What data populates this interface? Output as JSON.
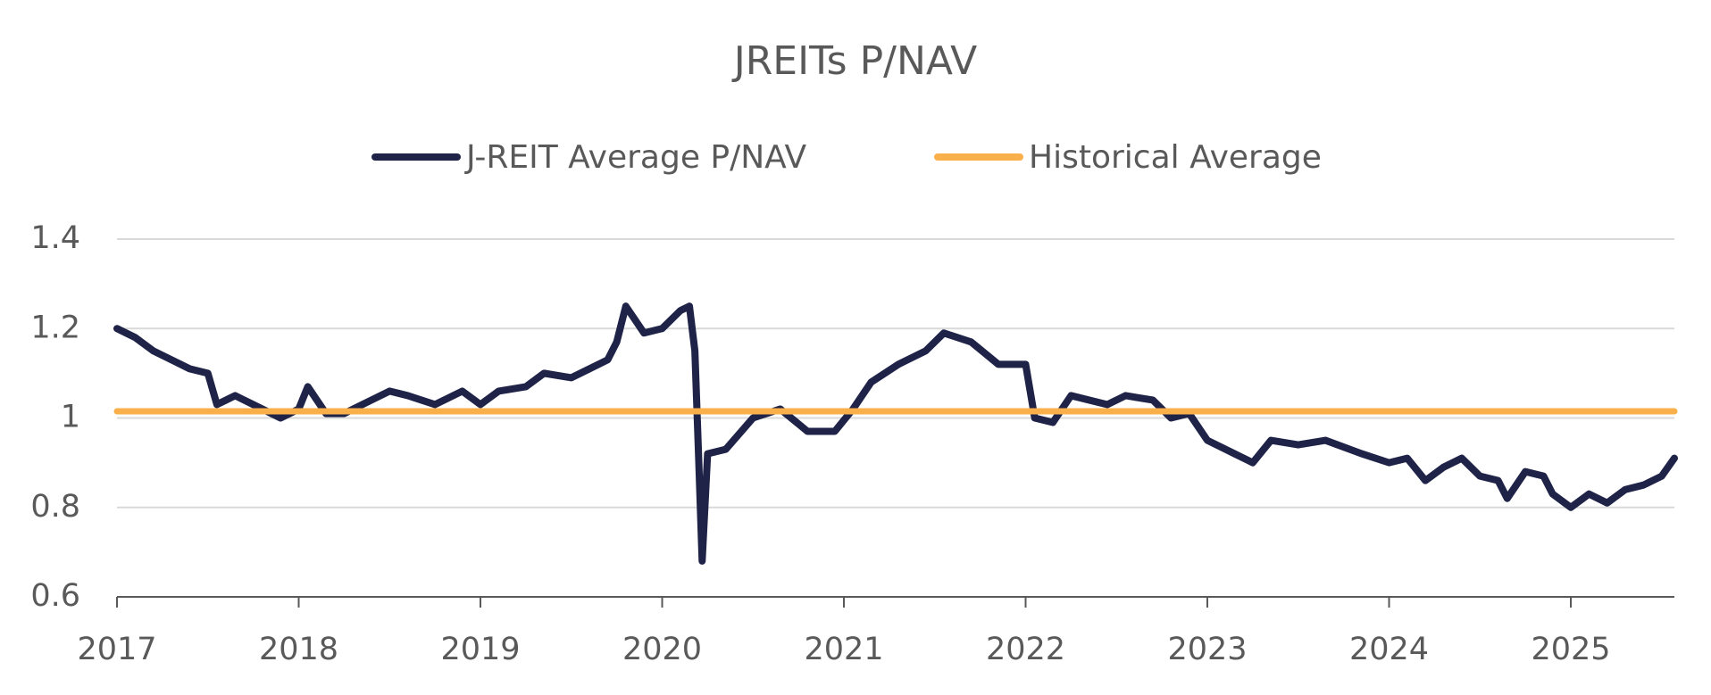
{
  "chart_data": {
    "type": "line",
    "title": "JREITs P/NAV",
    "xlim": [
      2017,
      2025.57
    ],
    "xticks": [
      2017,
      2018,
      2019,
      2020,
      2021,
      2022,
      2023,
      2024,
      2025
    ],
    "ylim": [
      0.6,
      1.4
    ],
    "yticks": [
      0.6,
      0.8,
      1.0,
      1.2,
      1.4
    ],
    "grid": true,
    "series": [
      {
        "name": "J-REIT Average P/NAV",
        "color": "#1f2348",
        "x": [
          2017.0,
          2017.1,
          2017.2,
          2017.3,
          2017.4,
          2017.5,
          2017.55,
          2017.65,
          2017.8,
          2017.9,
          2018.0,
          2018.05,
          2018.15,
          2018.25,
          2018.4,
          2018.5,
          2018.6,
          2018.75,
          2018.9,
          2019.0,
          2019.1,
          2019.25,
          2019.35,
          2019.5,
          2019.6,
          2019.7,
          2019.75,
          2019.8,
          2019.9,
          2020.0,
          2020.1,
          2020.15,
          2020.18,
          2020.2,
          2020.22,
          2020.25,
          2020.35,
          2020.5,
          2020.65,
          2020.8,
          2020.95,
          2021.05,
          2021.15,
          2021.3,
          2021.45,
          2021.55,
          2021.7,
          2021.85,
          2022.0,
          2022.05,
          2022.15,
          2022.25,
          2022.45,
          2022.55,
          2022.7,
          2022.8,
          2022.9,
          2023.0,
          2023.15,
          2023.25,
          2023.35,
          2023.5,
          2023.65,
          2023.85,
          2024.0,
          2024.1,
          2024.2,
          2024.3,
          2024.4,
          2024.5,
          2024.6,
          2024.65,
          2024.75,
          2024.85,
          2024.9,
          2025.0,
          2025.1,
          2025.2,
          2025.3,
          2025.4,
          2025.5,
          2025.57
        ],
        "values": [
          1.2,
          1.18,
          1.15,
          1.13,
          1.11,
          1.1,
          1.03,
          1.05,
          1.02,
          1.0,
          1.02,
          1.07,
          1.01,
          1.01,
          1.04,
          1.06,
          1.05,
          1.03,
          1.06,
          1.03,
          1.06,
          1.07,
          1.1,
          1.09,
          1.11,
          1.13,
          1.17,
          1.25,
          1.19,
          1.2,
          1.24,
          1.25,
          1.15,
          0.92,
          0.68,
          0.92,
          0.93,
          1.0,
          1.02,
          0.97,
          0.97,
          1.02,
          1.08,
          1.12,
          1.15,
          1.19,
          1.17,
          1.12,
          1.12,
          1.0,
          0.99,
          1.05,
          1.03,
          1.05,
          1.04,
          1.0,
          1.01,
          0.95,
          0.92,
          0.9,
          0.95,
          0.94,
          0.95,
          0.92,
          0.9,
          0.91,
          0.86,
          0.89,
          0.91,
          0.87,
          0.86,
          0.82,
          0.88,
          0.87,
          0.83,
          0.8,
          0.83,
          0.81,
          0.84,
          0.85,
          0.87,
          0.91
        ]
      },
      {
        "name": "Historical Average",
        "color": "#f9b04a",
        "x": [
          2017,
          2025.57
        ],
        "values": [
          1.015,
          1.015
        ]
      }
    ]
  }
}
